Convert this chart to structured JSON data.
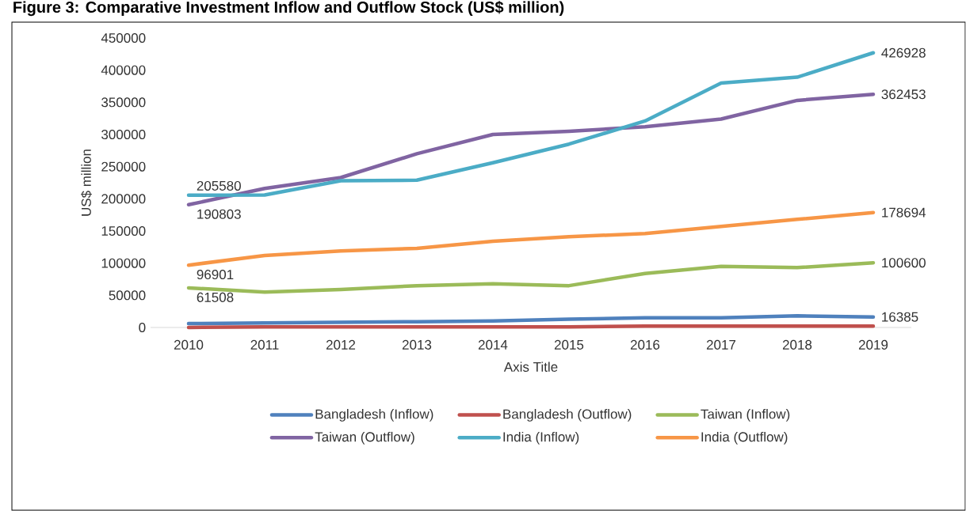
{
  "chart_data": {
    "type": "line",
    "title": "Figure 3: Comparative Investment Inflow and Outflow Stock (US$ million)",
    "xlabel": "Axis Title",
    "ylabel": "US$ million",
    "categories": [
      "2010",
      "2011",
      "2012",
      "2013",
      "2014",
      "2015",
      "2016",
      "2017",
      "2018",
      "2019"
    ],
    "ylim": [
      0,
      450000
    ],
    "yticks": [
      0,
      50000,
      100000,
      150000,
      200000,
      250000,
      300000,
      350000,
      400000,
      450000
    ],
    "legend": "bottom",
    "series": [
      {
        "name": "Bangladesh (Inflow)",
        "color": "#4f81bd",
        "values": [
          6000,
          7000,
          8000,
          9000,
          10000,
          13000,
          15000,
          15000,
          18000,
          16385
        ],
        "value_labels": [
          null,
          null,
          null,
          null,
          null,
          null,
          null,
          null,
          null,
          "16385"
        ]
      },
      {
        "name": "Bangladesh (Outflow)",
        "color": "#c0504d",
        "values": [
          0,
          1000,
          1000,
          1000,
          1000,
          1000,
          2000,
          2000,
          2000,
          2000
        ]
      },
      {
        "name": "Taiwan (Inflow)",
        "color": "#9bbb59",
        "values": [
          61508,
          55000,
          59000,
          65000,
          68000,
          65000,
          84000,
          95000,
          93000,
          100600
        ],
        "value_labels": [
          "61508",
          null,
          null,
          null,
          null,
          null,
          null,
          null,
          null,
          "100600"
        ]
      },
      {
        "name": "Taiwan (Outflow)",
        "color": "#8064a2",
        "values": [
          190803,
          216000,
          233000,
          270000,
          300000,
          305000,
          312000,
          324000,
          353000,
          362453
        ],
        "value_labels": [
          "190803",
          null,
          null,
          null,
          null,
          null,
          null,
          null,
          null,
          "362453"
        ]
      },
      {
        "name": "India (Inflow)",
        "color": "#4bacc6",
        "values": [
          205580,
          206000,
          228000,
          229000,
          256000,
          285000,
          321000,
          380000,
          389000,
          426928
        ],
        "value_labels": [
          "205580",
          null,
          null,
          null,
          null,
          null,
          null,
          null,
          null,
          "426928"
        ]
      },
      {
        "name": "India (Outflow)",
        "color": "#f79646",
        "values": [
          96901,
          112000,
          119000,
          123000,
          134000,
          141000,
          146000,
          157000,
          168000,
          178694
        ],
        "value_labels": [
          "96901",
          null,
          null,
          null,
          null,
          null,
          null,
          null,
          null,
          "178694"
        ]
      }
    ]
  }
}
